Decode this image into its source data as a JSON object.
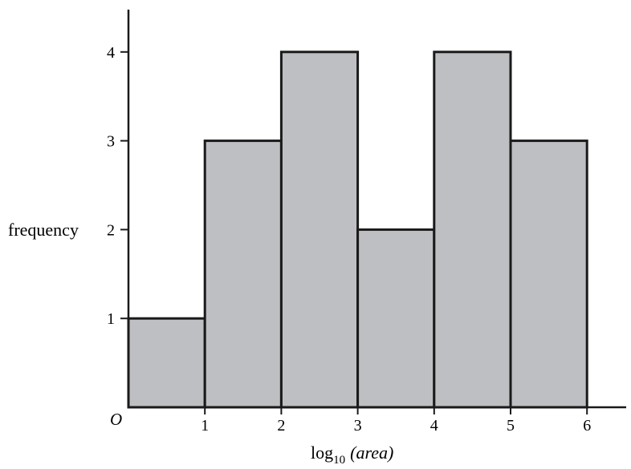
{
  "chart_data": {
    "type": "bar",
    "bins": [
      {
        "x0": 0,
        "x1": 1,
        "value": 1
      },
      {
        "x0": 1,
        "x1": 2,
        "value": 3
      },
      {
        "x0": 2,
        "x1": 3,
        "value": 4
      },
      {
        "x0": 3,
        "x1": 4,
        "value": 2
      },
      {
        "x0": 4,
        "x1": 5,
        "value": 4
      },
      {
        "x0": 5,
        "x1": 6,
        "value": 3
      }
    ],
    "x_ticks": [
      1,
      2,
      3,
      4,
      5,
      6
    ],
    "y_ticks": [
      1,
      2,
      3,
      4
    ],
    "xlim": [
      0,
      6.5
    ],
    "ylim": [
      0,
      4.5
    ],
    "xlabel_main": "log",
    "xlabel_sub": "10",
    "xlabel_var": "(area)",
    "ylabel": "frequency",
    "origin_label": "O",
    "grid": false,
    "bar_color": "#bebfc3",
    "edge_color": "#1a1a1a"
  }
}
